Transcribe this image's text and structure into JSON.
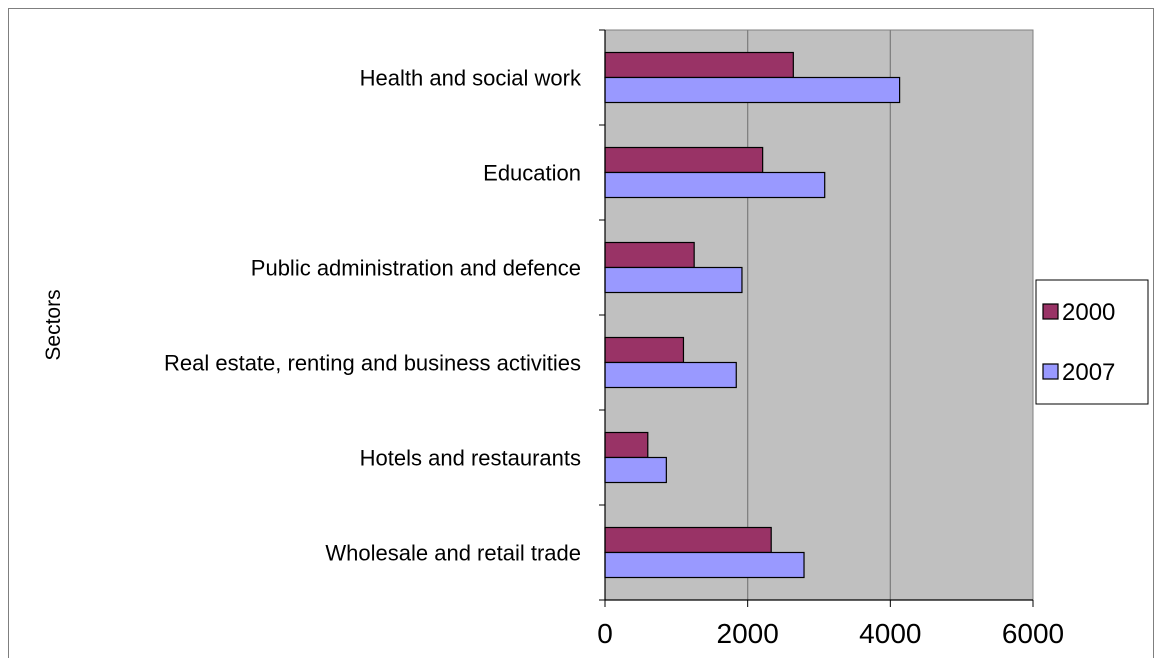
{
  "chart_data": {
    "type": "bar",
    "orientation": "horizontal",
    "title": "",
    "xlabel": "",
    "ylabel": "Sectors",
    "categories": [
      "Wholesale and retail trade",
      "Hotels and restaurants",
      "Real estate, renting and business activities",
      "Public administration and defence",
      "Education",
      "Health and social work"
    ],
    "series": [
      {
        "name": "2000",
        "color": "#993366",
        "values": [
          2330,
          600,
          1100,
          1250,
          2210,
          2640
        ]
      },
      {
        "name": "2007",
        "color": "#9999ff",
        "values": [
          2790,
          860,
          1840,
          1920,
          3080,
          4130
        ]
      }
    ],
    "xlim": [
      0,
      6000
    ],
    "xticks": [
      "0",
      "2000",
      "4000",
      "6000"
    ],
    "grid": true,
    "plot_background": "#c0c0c0",
    "legend_position": "right"
  }
}
